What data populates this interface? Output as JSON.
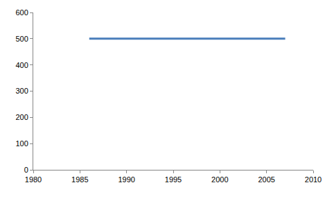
{
  "chart_data": {
    "type": "line",
    "x": [
      1986,
      2007
    ],
    "series": [
      {
        "color": "#4a7ebb",
        "values": [
          500,
          500
        ]
      }
    ],
    "xlim": [
      1980,
      2010
    ],
    "xticks": [
      1980,
      1985,
      1990,
      1995,
      2000,
      2005,
      2010
    ],
    "ylim": [
      0,
      600
    ],
    "yticks": [
      0,
      100,
      200,
      300,
      400,
      500,
      600
    ],
    "grid": false
  }
}
